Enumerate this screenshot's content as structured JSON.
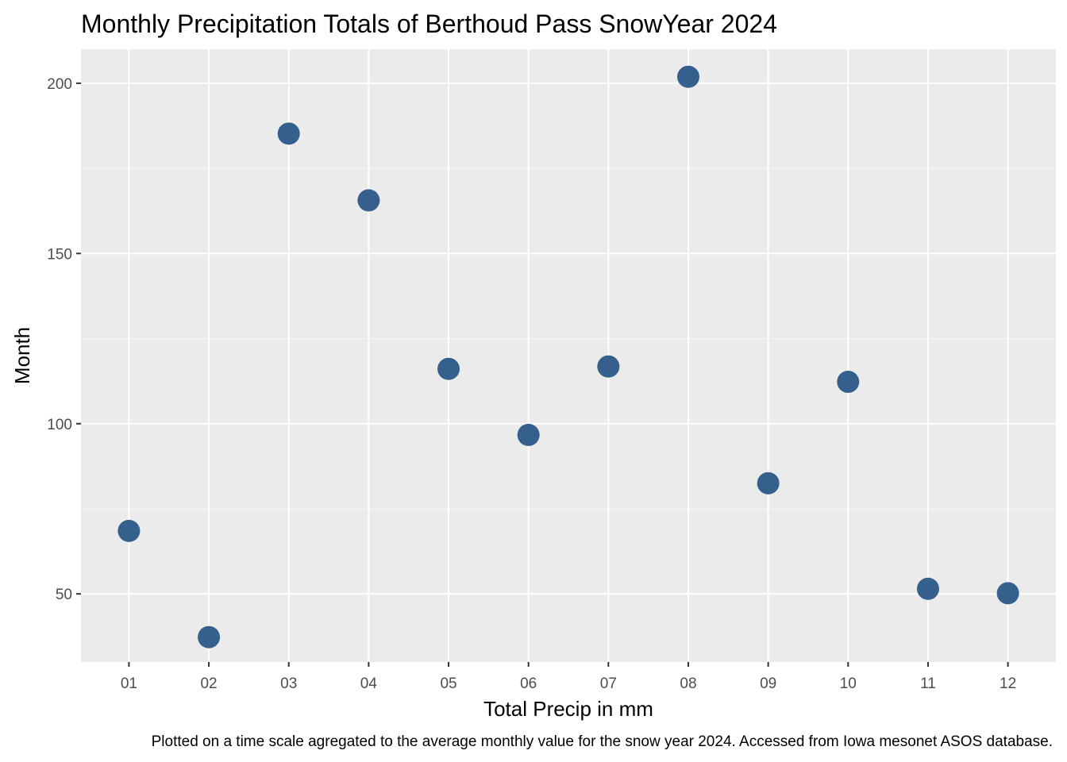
{
  "chart_data": {
    "type": "scatter",
    "title": "Monthly Precipitation Totals of Berthoud Pass SnowYear 2024",
    "xlabel": "Total Precip in mm",
    "ylabel": "Month",
    "caption": "Plotted on a time scale agregated to the average monthly value for the snow year 2024. Accessed from Iowa mesonet ASOS database.",
    "categories": [
      "01",
      "02",
      "03",
      "04",
      "05",
      "06",
      "07",
      "08",
      "09",
      "10",
      "11",
      "12"
    ],
    "values": [
      68.5,
      37.3,
      185.2,
      165.6,
      116.1,
      96.7,
      116.8,
      201.9,
      82.5,
      112.3,
      51.5,
      50.2
    ],
    "ylim": [
      30,
      210
    ],
    "y_ticks": [
      50,
      100,
      150,
      200
    ],
    "grid": true,
    "colors": {
      "panel_background": "#ebebeb",
      "grid_major": "#ffffff",
      "point": "#35608d"
    }
  }
}
